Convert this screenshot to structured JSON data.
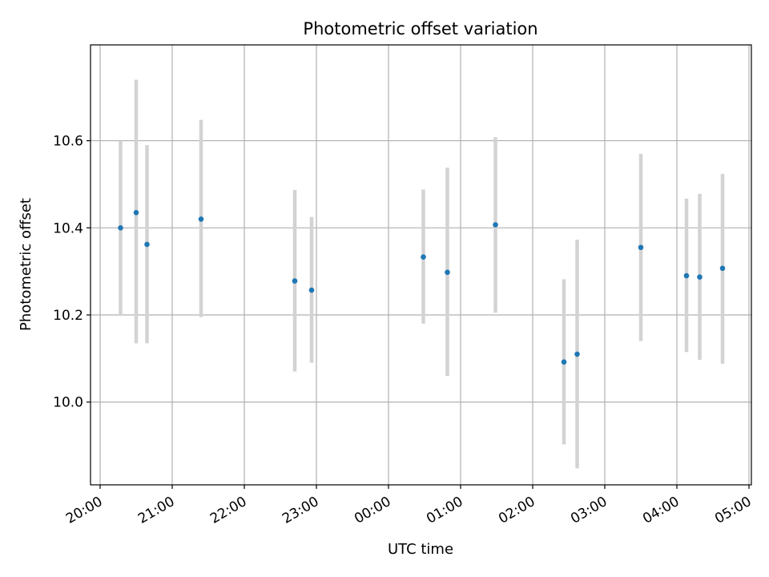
{
  "chart_data": {
    "type": "scatter",
    "title": "Photometric offset variation",
    "xlabel": "UTC time",
    "ylabel": "Photometric offset",
    "x_ticks": [
      "20:00",
      "21:00",
      "22:00",
      "23:00",
      "00:00",
      "01:00",
      "02:00",
      "03:00",
      "04:00",
      "05:00"
    ],
    "y_ticks": [
      "10.0",
      "10.2",
      "10.4",
      "10.6"
    ],
    "xlim": [
      "19:52",
      "05:02"
    ],
    "ylim": [
      9.81,
      10.82
    ],
    "grid": true,
    "colors": {
      "point": "#1f77b4",
      "errorbar": "#d3d3d3",
      "grid": "#b0b0b0"
    },
    "points": [
      {
        "time": "20:17",
        "value": 10.4,
        "low": 10.2,
        "high": 10.6
      },
      {
        "time": "20:30",
        "value": 10.435,
        "low": 10.135,
        "high": 10.74
      },
      {
        "time": "20:39",
        "value": 10.362,
        "low": 10.135,
        "high": 10.59
      },
      {
        "time": "21:24",
        "value": 10.42,
        "low": 10.195,
        "high": 10.648
      },
      {
        "time": "22:42",
        "value": 10.278,
        "low": 10.07,
        "high": 10.487
      },
      {
        "time": "22:56",
        "value": 10.257,
        "low": 10.09,
        "high": 10.425
      },
      {
        "time": "00:29",
        "value": 10.333,
        "low": 10.18,
        "high": 10.488
      },
      {
        "time": "00:49",
        "value": 10.298,
        "low": 10.06,
        "high": 10.538
      },
      {
        "time": "01:29",
        "value": 10.407,
        "low": 10.205,
        "high": 10.608
      },
      {
        "time": "02:26",
        "value": 10.092,
        "low": 9.903,
        "high": 10.282
      },
      {
        "time": "02:37",
        "value": 10.11,
        "low": 9.848,
        "high": 10.373
      },
      {
        "time": "03:30",
        "value": 10.355,
        "low": 10.14,
        "high": 10.57
      },
      {
        "time": "04:08",
        "value": 10.29,
        "low": 10.115,
        "high": 10.467
      },
      {
        "time": "04:19",
        "value": 10.287,
        "low": 10.097,
        "high": 10.478
      },
      {
        "time": "04:38",
        "value": 10.307,
        "low": 10.088,
        "high": 10.524
      }
    ]
  }
}
